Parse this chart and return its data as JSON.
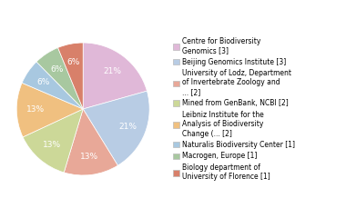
{
  "labels": [
    "Centre for Biodiversity\nGenomics [3]",
    "Beijing Genomics Institute [3]",
    "University of Lodz, Department\nof Invertebrate Zoology and\n... [2]",
    "Mined from GenBank, NCBI [2]",
    "Leibniz Institute for the\nAnalysis of Biodiversity\nChange (... [2]",
    "Naturalis Biodiversity Center [1]",
    "Macrogen, Europe [1]",
    "Biology department of\nUniversity of Florence [1]"
  ],
  "values": [
    20,
    20,
    13,
    13,
    13,
    6,
    6,
    6
  ],
  "colors": [
    "#e0b8d8",
    "#b8cce4",
    "#e8a898",
    "#ccd898",
    "#f0c080",
    "#a8c8e0",
    "#a8c8a0",
    "#d8806a"
  ],
  "startangle": 90,
  "pct_color": "white",
  "pct_fontsize": 6.5,
  "legend_fontsize": 5.5,
  "figsize": [
    3.8,
    2.4
  ],
  "dpi": 100
}
